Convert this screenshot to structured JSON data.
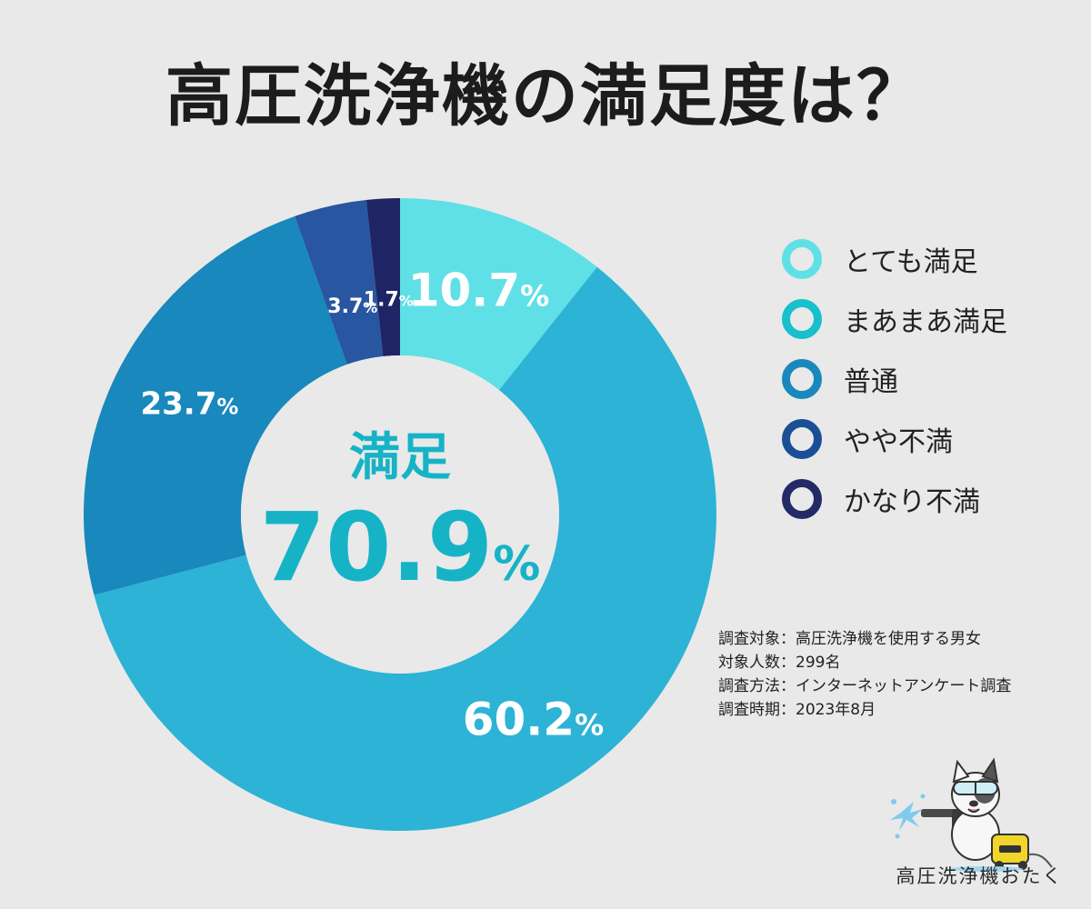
{
  "title": "高圧洗浄機の満足度は？",
  "center": {
    "label": "満足",
    "value": "70.9",
    "unit": "%"
  },
  "chart_data": {
    "type": "pie",
    "title": "高圧洗浄機の満足度は？",
    "categories": [
      "とても満足",
      "まあまあ満足",
      "普通",
      "やや不満",
      "かなり不満"
    ],
    "values": [
      10.7,
      60.2,
      23.7,
      3.7,
      1.7
    ],
    "labels": [
      "10.7",
      "60.2",
      "23.7",
      "3.7",
      "1.7"
    ],
    "unit": "%",
    "colors": [
      "#5fe0e6",
      "#2cb3d6",
      "#1988bc",
      "#2856a0",
      "#1e2464"
    ],
    "legend": "right",
    "donut": true
  },
  "legend": [
    {
      "label": "とても満足",
      "color": "#5fe0e6"
    },
    {
      "label": "まあまあ満足",
      "color": "#17c0cc"
    },
    {
      "label": "普通",
      "color": "#1988bc"
    },
    {
      "label": "やや不満",
      "color": "#1a4f95"
    },
    {
      "label": "かなり不満",
      "color": "#232a66"
    }
  ],
  "survey": [
    "調査対象：高圧洗浄機を使用する男女",
    "対象人数：299名",
    "調査方法：インターネットアンケート調査",
    "調査時期：2023年8月"
  ],
  "brand": {
    "name": "高圧洗浄機おたく"
  }
}
